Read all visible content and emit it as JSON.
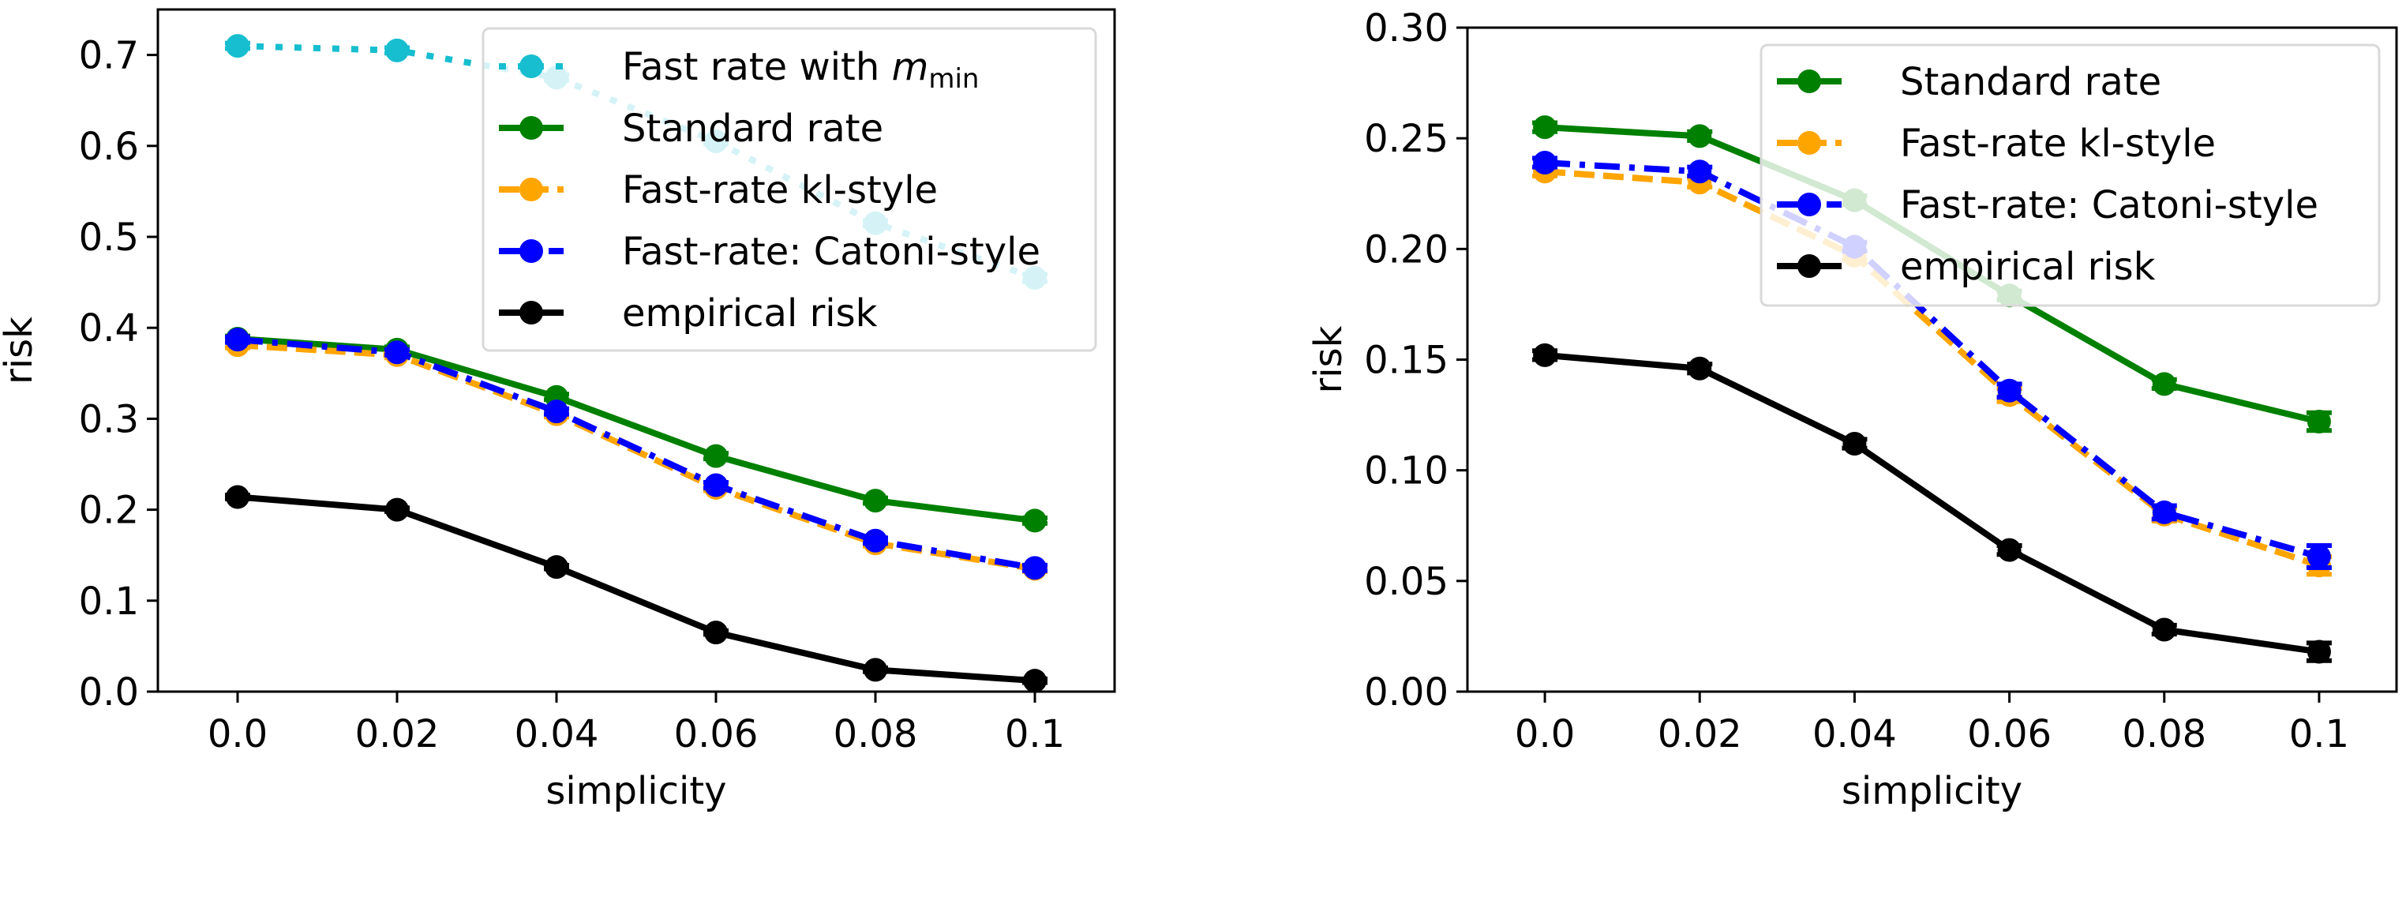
{
  "chart_data": [
    {
      "type": "line",
      "xlabel": "simplicity",
      "ylabel": "risk",
      "x": [
        0.0,
        0.02,
        0.04,
        0.06,
        0.08,
        0.1
      ],
      "x_tick_labels": [
        "0.0",
        "0.02",
        "0.04",
        "0.06",
        "0.08",
        "0.1"
      ],
      "y_ticks": [
        0.0,
        0.1,
        0.2,
        0.3,
        0.4,
        0.5,
        0.6,
        0.7
      ],
      "y_tick_labels": [
        "0.0",
        "0.1",
        "0.2",
        "0.3",
        "0.4",
        "0.5",
        "0.6",
        "0.7"
      ],
      "xlim": [
        -0.01,
        0.11
      ],
      "ylim": [
        0.0,
        0.75
      ],
      "grid": false,
      "legend_position": "top-right",
      "series": [
        {
          "name": "Fast rate with m_min",
          "label_main": "Fast rate with ",
          "label_var": "m",
          "label_sub": "min",
          "color": "#17becf",
          "linestyle": "dotted",
          "values": [
            0.71,
            0.705,
            0.675,
            0.605,
            0.515,
            0.455
          ],
          "errors": [
            0.003,
            0.003,
            0.003,
            0.003,
            0.003,
            0.004
          ]
        },
        {
          "name": "Standard rate",
          "label_main": "Standard rate",
          "color": "#008000",
          "linestyle": "solid",
          "values": [
            0.388,
            0.376,
            0.324,
            0.259,
            0.21,
            0.188
          ],
          "errors": [
            0.003,
            0.003,
            0.003,
            0.003,
            0.003,
            0.003
          ]
        },
        {
          "name": "Fast-rate kl-style",
          "label_main": "Fast-rate kl-style",
          "color": "#ffa500",
          "linestyle": "dashed",
          "values": [
            0.381,
            0.37,
            0.305,
            0.224,
            0.163,
            0.135
          ],
          "errors": [
            0.003,
            0.003,
            0.003,
            0.003,
            0.003,
            0.003
          ]
        },
        {
          "name": "Fast-rate: Catoni-style",
          "label_main": "Fast-rate: Catoni-style",
          "color": "#0000ff",
          "linestyle": "dashdot",
          "values": [
            0.387,
            0.373,
            0.308,
            0.227,
            0.166,
            0.136
          ],
          "errors": [
            0.003,
            0.003,
            0.003,
            0.003,
            0.003,
            0.003
          ]
        },
        {
          "name": "empirical risk",
          "label_main": "empirical risk",
          "color": "#000000",
          "linestyle": "solid",
          "values": [
            0.214,
            0.2,
            0.137,
            0.065,
            0.024,
            0.012
          ],
          "errors": [
            0.002,
            0.002,
            0.002,
            0.002,
            0.002,
            0.002
          ]
        }
      ]
    },
    {
      "type": "line",
      "xlabel": "simplicity",
      "ylabel": "risk",
      "x": [
        0.0,
        0.02,
        0.04,
        0.06,
        0.08,
        0.1
      ],
      "x_tick_labels": [
        "0.0",
        "0.02",
        "0.04",
        "0.06",
        "0.08",
        "0.1"
      ],
      "y_ticks": [
        0.0,
        0.05,
        0.1,
        0.15,
        0.2,
        0.25,
        0.3
      ],
      "y_tick_labels": [
        "0.00",
        "0.05",
        "0.10",
        "0.15",
        "0.20",
        "0.25",
        "0.30"
      ],
      "xlim": [
        -0.01,
        0.11
      ],
      "ylim": [
        0.0,
        0.3
      ],
      "grid": false,
      "legend_position": "top-right",
      "series": [
        {
          "name": "Standard rate",
          "label_main": "Standard rate",
          "color": "#008000",
          "linestyle": "solid",
          "values": [
            0.255,
            0.251,
            0.222,
            0.179,
            0.139,
            0.122
          ],
          "errors": [
            0.002,
            0.002,
            0.002,
            0.002,
            0.002,
            0.004
          ]
        },
        {
          "name": "Fast-rate kl-style",
          "label_main": "Fast-rate kl-style",
          "color": "#ffa500",
          "linestyle": "dashed",
          "values": [
            0.235,
            0.23,
            0.197,
            0.134,
            0.08,
            0.057
          ],
          "errors": [
            0.002,
            0.002,
            0.002,
            0.003,
            0.003,
            0.004
          ]
        },
        {
          "name": "Fast-rate: Catoni-style",
          "label_main": "Fast-rate: Catoni-style",
          "color": "#0000ff",
          "linestyle": "dashdot",
          "values": [
            0.239,
            0.235,
            0.201,
            0.136,
            0.081,
            0.061
          ],
          "errors": [
            0.002,
            0.002,
            0.002,
            0.003,
            0.003,
            0.005
          ]
        },
        {
          "name": "empirical risk",
          "label_main": "empirical risk",
          "color": "#000000",
          "linestyle": "solid",
          "values": [
            0.152,
            0.146,
            0.112,
            0.064,
            0.028,
            0.018
          ],
          "errors": [
            0.002,
            0.002,
            0.002,
            0.002,
            0.002,
            0.004
          ]
        }
      ]
    }
  ]
}
